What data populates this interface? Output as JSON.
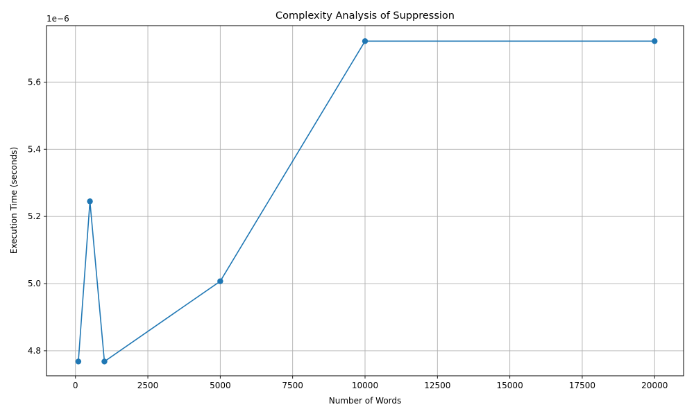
{
  "chart_data": {
    "type": "line",
    "title": "Complexity Analysis of Suppression",
    "xlabel": "Number of Words",
    "ylabel": "Execution Time (seconds)",
    "y_offset_label": "1e−6",
    "y_scale_factor": 1e-06,
    "xlim": [
      -1000,
      21000
    ],
    "ylim": [
      4.7255,
      5.768
    ],
    "x_ticks": [
      0,
      2500,
      5000,
      7500,
      10000,
      12500,
      15000,
      17500,
      20000
    ],
    "x_tick_labels": [
      "0",
      "2500",
      "5000",
      "7500",
      "10000",
      "12500",
      "15000",
      "17500",
      "20000"
    ],
    "y_ticks": [
      4.8,
      5.0,
      5.2,
      5.4,
      5.6
    ],
    "y_tick_labels": [
      "4.8",
      "5.0",
      "5.2",
      "5.4",
      "5.6"
    ],
    "grid": true,
    "marker": "circle",
    "color": "#1f77b4",
    "series": [
      {
        "x": [
          100,
          500,
          1000,
          5000,
          10000,
          20000
        ],
        "y": [
          4.768,
          5.245,
          4.768,
          5.007,
          5.722,
          5.722
        ]
      }
    ]
  }
}
